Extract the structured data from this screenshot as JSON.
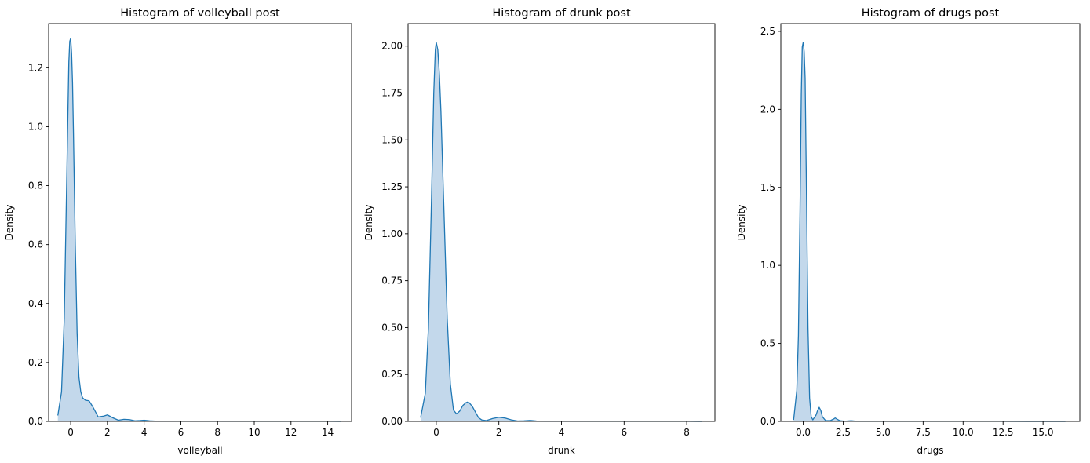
{
  "chart_data": [
    {
      "type": "area",
      "title": "Histogram of volleyball post",
      "xlabel": "volleyball",
      "ylabel": "Density",
      "xlim": [
        -1.2,
        15.3
      ],
      "ylim": [
        0,
        1.35
      ],
      "xticks": [
        0,
        2,
        4,
        6,
        8,
        10,
        12,
        14
      ],
      "xtick_labels": [
        "0",
        "2",
        "4",
        "6",
        "8",
        "10",
        "12",
        "14"
      ],
      "yticks": [
        0.0,
        0.2,
        0.4,
        0.6,
        0.8,
        1.0,
        1.2
      ],
      "ytick_labels": [
        "0.0",
        "0.2",
        "0.4",
        "0.6",
        "0.8",
        "1.0",
        "1.2"
      ],
      "color": "#1f77b4",
      "fill_color": "#c3d8eb",
      "series": [
        {
          "x": [
            -0.7,
            -0.5,
            -0.35,
            -0.25,
            -0.15,
            -0.1,
            -0.05,
            0.0,
            0.05,
            0.1,
            0.15,
            0.25,
            0.35,
            0.45,
            0.55,
            0.65,
            0.8,
            1.0,
            1.2,
            1.5,
            1.8,
            2.0,
            2.3,
            2.6,
            2.9,
            3.2,
            3.5,
            3.8,
            4.0,
            4.3,
            4.6,
            5.0,
            6.0,
            8.0,
            10.0,
            12.0,
            14.0,
            14.7
          ],
          "y": [
            0.02,
            0.1,
            0.35,
            0.7,
            1.05,
            1.22,
            1.29,
            1.3,
            1.25,
            1.15,
            0.98,
            0.6,
            0.3,
            0.15,
            0.1,
            0.08,
            0.072,
            0.07,
            0.05,
            0.015,
            0.018,
            0.022,
            0.012,
            0.004,
            0.007,
            0.006,
            0.002,
            0.003,
            0.004,
            0.002,
            0.001,
            0.001,
            0.001,
            0.0008,
            0.0005,
            0.0004,
            0.0004,
            0.0
          ]
        }
      ]
    },
    {
      "type": "area",
      "title": "Histogram of drunk post",
      "xlabel": "drunk",
      "ylabel": "Density",
      "xlim": [
        -0.9,
        8.9
      ],
      "ylim": [
        0,
        2.12
      ],
      "xticks": [
        0,
        2,
        4,
        6,
        8
      ],
      "xtick_labels": [
        "0",
        "2",
        "4",
        "6",
        "8"
      ],
      "yticks": [
        0.0,
        0.25,
        0.5,
        0.75,
        1.0,
        1.25,
        1.5,
        1.75,
        2.0
      ],
      "ytick_labels": [
        "0.00",
        "0.25",
        "0.50",
        "0.75",
        "1.00",
        "1.25",
        "1.50",
        "1.75",
        "2.00"
      ],
      "color": "#1f77b4",
      "fill_color": "#c3d8eb",
      "series": [
        {
          "x": [
            -0.5,
            -0.35,
            -0.25,
            -0.15,
            -0.08,
            -0.03,
            0.0,
            0.05,
            0.1,
            0.15,
            0.25,
            0.35,
            0.45,
            0.55,
            0.65,
            0.75,
            0.85,
            0.95,
            1.0,
            1.05,
            1.15,
            1.25,
            1.35,
            1.45,
            1.6,
            1.8,
            2.0,
            2.2,
            2.4,
            2.6,
            2.8,
            3.0,
            3.2,
            3.5,
            4.0,
            5.0,
            6.0,
            7.0,
            8.0,
            8.5
          ],
          "y": [
            0.02,
            0.15,
            0.5,
            1.2,
            1.75,
            1.98,
            2.02,
            1.98,
            1.85,
            1.65,
            1.1,
            0.55,
            0.2,
            0.06,
            0.04,
            0.055,
            0.085,
            0.1,
            0.103,
            0.1,
            0.08,
            0.05,
            0.02,
            0.008,
            0.004,
            0.015,
            0.022,
            0.018,
            0.008,
            0.002,
            0.003,
            0.005,
            0.002,
            0.001,
            0.001,
            0.0008,
            0.0006,
            0.0005,
            0.0005,
            0.0
          ]
        }
      ]
    },
    {
      "type": "area",
      "title": "Histogram of drugs post",
      "xlabel": "drugs",
      "ylabel": "Density",
      "xlim": [
        -1.4,
        17.3
      ],
      "ylim": [
        0,
        2.55
      ],
      "xticks": [
        0,
        2.5,
        5,
        7.5,
        10,
        12.5,
        15
      ],
      "xtick_labels": [
        "0.0",
        "2.5",
        "5.0",
        "7.5",
        "10.0",
        "12.5",
        "15.0"
      ],
      "yticks": [
        0.0,
        0.5,
        1.0,
        1.5,
        2.0,
        2.5
      ],
      "ytick_labels": [
        "0.0",
        "0.5",
        "1.0",
        "1.5",
        "2.0",
        "2.5"
      ],
      "color": "#1f77b4",
      "fill_color": "#c3d8eb",
      "series": [
        {
          "x": [
            -0.6,
            -0.4,
            -0.3,
            -0.2,
            -0.12,
            -0.06,
            0.0,
            0.06,
            0.12,
            0.2,
            0.3,
            0.4,
            0.5,
            0.6,
            0.8,
            0.9,
            1.0,
            1.1,
            1.2,
            1.4,
            1.7,
            1.9,
            2.0,
            2.1,
            2.3,
            2.6,
            3.0,
            3.3,
            4.0,
            6.0,
            8.0,
            10.0,
            12.0,
            14.0,
            16.0,
            16.4
          ],
          "y": [
            0.01,
            0.2,
            0.55,
            1.35,
            2.1,
            2.4,
            2.43,
            2.37,
            2.2,
            1.5,
            0.6,
            0.15,
            0.03,
            0.01,
            0.04,
            0.07,
            0.09,
            0.07,
            0.03,
            0.005,
            0.005,
            0.015,
            0.022,
            0.015,
            0.004,
            0.001,
            0.004,
            0.001,
            0.001,
            0.0008,
            0.0006,
            0.0005,
            0.0005,
            0.0004,
            0.0003,
            0.0
          ]
        }
      ]
    }
  ]
}
